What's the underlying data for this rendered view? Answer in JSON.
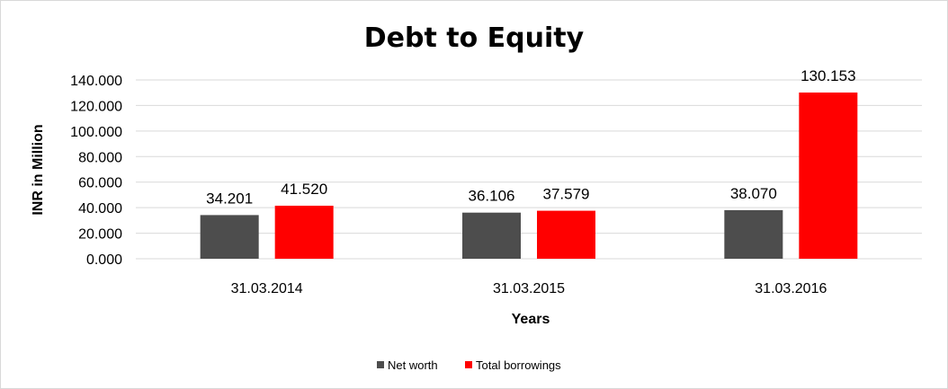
{
  "chart_data": {
    "type": "bar",
    "title": "Debt to Equity",
    "xlabel": "Years",
    "ylabel": "INR in Million",
    "categories": [
      "31.03.2014",
      "31.03.2015",
      "31.03.2016"
    ],
    "series": [
      {
        "name": "Net worth",
        "color": "#4d4d4d",
        "values": [
          34.201,
          36.106,
          38.07
        ],
        "labels": [
          "34.201",
          "36.106",
          "38.070"
        ]
      },
      {
        "name": "Total borrowings",
        "color": "#ff0000",
        "values": [
          41.52,
          37.579,
          130.153
        ],
        "labels": [
          "41.520",
          "37.579",
          "130.153"
        ]
      }
    ],
    "ylim": [
      0,
      140
    ],
    "yticks": [
      "0.000",
      "20.000",
      "40.000",
      "60.000",
      "80.000",
      "100.000",
      "120.000",
      "140.000"
    ],
    "grid": true,
    "gridColor": "#d9d9d9",
    "legendPosition": "bottom"
  }
}
